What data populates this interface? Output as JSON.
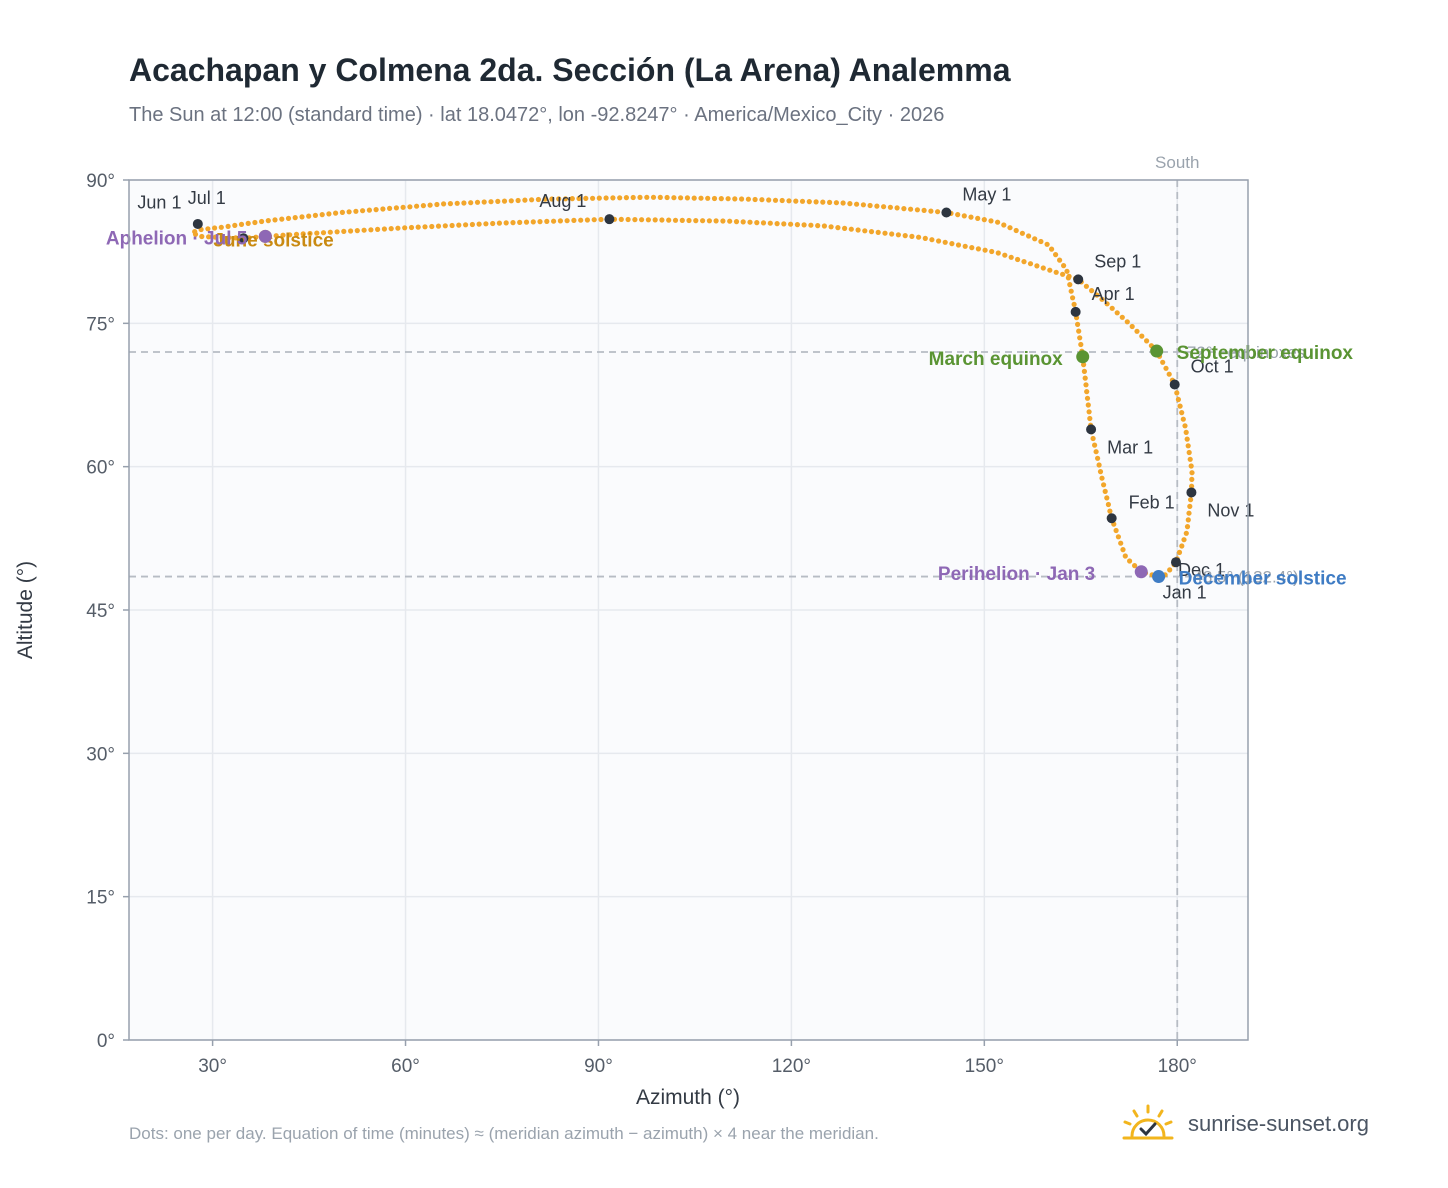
{
  "title": "Acachapan y Colmena 2da. Sección (La Arena) Analemma",
  "subtitle": "The Sun at 12:00 (standard time) · lat 18.0472°, lon -92.8247° · America/Mexico_City · 2026",
  "footnote": "Dots: one per day. Equation of time (minutes) ≈ (meridian azimuth − azimuth) × 4 near the meridian.",
  "brand": {
    "text": "sunrise-sunset.org",
    "icon": "sun-check-logo-icon"
  },
  "colors": {
    "path": "#f2a62b",
    "month_marker": "#2d3540",
    "solstice_june": "#c98a12",
    "solstice_december": "#3f7cc4",
    "equinox": "#5a9433",
    "apsis": "#8e68b5",
    "reference_line": "#b7bcc4",
    "grid": "#e6e9ee",
    "plot_bg": "#fafbfd",
    "axis_frame": "#97a0ad"
  },
  "chart_data": {
    "type": "scatter",
    "xlabel": "Azimuth (°)",
    "ylabel": "Altitude (°)",
    "xlim": [
      17,
      191
    ],
    "ylim": [
      0,
      90
    ],
    "xticks": [
      30,
      60,
      90,
      120,
      150,
      180
    ],
    "xtick_labels": [
      "30°",
      "60°",
      "90°",
      "120°",
      "150°",
      "180°"
    ],
    "yticks": [
      0,
      15,
      30,
      45,
      60,
      75,
      90
    ],
    "ytick_labels": [
      "0°",
      "15°",
      "30°",
      "45°",
      "60°",
      "75°",
      "90°"
    ],
    "grid": true,
    "meridian": {
      "azimuth": 180,
      "label": "South"
    },
    "reference_lines": [
      {
        "altitude": 72.0,
        "label": "72° · equinoxes"
      },
      {
        "altitude": 48.5,
        "label": "48.5° (132.4°)"
      }
    ],
    "month_markers": [
      {
        "label": "Jan 1",
        "az": 177.1,
        "alt": 48.5
      },
      {
        "label": "Feb 1",
        "az": 169.8,
        "alt": 54.6
      },
      {
        "label": "Mar 1",
        "az": 166.6,
        "alt": 63.9
      },
      {
        "label": "Apr 1",
        "az": 164.2,
        "alt": 76.2
      },
      {
        "label": "May 1",
        "az": 144.1,
        "alt": 86.6
      },
      {
        "label": "Jun 1",
        "az": 34.8,
        "alt": 83.9
      },
      {
        "label": "Jul 1",
        "az": 27.7,
        "alt": 85.4
      },
      {
        "label": "Aug 1",
        "az": 91.7,
        "alt": 85.9
      },
      {
        "label": "Sep 1",
        "az": 164.6,
        "alt": 79.6
      },
      {
        "label": "Oct 1",
        "az": 179.6,
        "alt": 68.6
      },
      {
        "label": "Nov 1",
        "az": 182.2,
        "alt": 57.3
      },
      {
        "label": "Dec 1",
        "az": 179.8,
        "alt": 50.0
      }
    ],
    "events": [
      {
        "label": "June solstice",
        "az": 38.2,
        "alt": 84.1,
        "kind": "solstice_june"
      },
      {
        "label": "December solstice",
        "az": 177.1,
        "alt": 48.5,
        "kind": "solstice_december"
      },
      {
        "label": "March equinox",
        "az": 165.3,
        "alt": 71.5,
        "kind": "equinox"
      },
      {
        "label": "September equinox",
        "az": 176.8,
        "alt": 72.1,
        "kind": "equinox"
      },
      {
        "label": "Aphelion · Jul 5",
        "az": 38.2,
        "alt": 84.1,
        "kind": "apsis"
      },
      {
        "label": "Perihelion · Jan 3",
        "az": 174.4,
        "alt": 49.0,
        "kind": "apsis"
      }
    ],
    "series": [
      {
        "points": [
          [
            177.1,
            48.5
          ],
          [
            174.4,
            49.0
          ],
          [
            172.0,
            50.5
          ],
          [
            169.8,
            54.6
          ],
          [
            168.3,
            58.8
          ],
          [
            166.6,
            63.9
          ],
          [
            165.3,
            71.5
          ],
          [
            164.2,
            76.2
          ],
          [
            162.8,
            80.6
          ],
          [
            160.0,
            83.2
          ],
          [
            152.0,
            85.6
          ],
          [
            144.1,
            86.6
          ],
          [
            128.0,
            87.6
          ],
          [
            113.0,
            88.0
          ],
          [
            98.0,
            88.2
          ],
          [
            82.0,
            88.0
          ],
          [
            66.0,
            87.5
          ],
          [
            50.0,
            86.6
          ],
          [
            38.0,
            85.7
          ],
          [
            32.0,
            85.1
          ],
          [
            28.0,
            84.8
          ],
          [
            26.8,
            84.5
          ],
          [
            28.0,
            84.1
          ],
          [
            34.8,
            83.9
          ],
          [
            38.2,
            84.1
          ],
          [
            45.0,
            84.4
          ],
          [
            60.0,
            85.0
          ],
          [
            75.0,
            85.5
          ],
          [
            91.7,
            85.9
          ],
          [
            110.0,
            85.7
          ],
          [
            125.0,
            85.2
          ],
          [
            140.0,
            84.0
          ],
          [
            152.0,
            82.4
          ],
          [
            160.0,
            80.6
          ],
          [
            164.6,
            79.6
          ],
          [
            168.5,
            77.4
          ],
          [
            172.5,
            75.0
          ],
          [
            176.8,
            72.1
          ],
          [
            179.6,
            68.6
          ],
          [
            181.3,
            64.0
          ],
          [
            182.3,
            59.5
          ],
          [
            182.2,
            57.3
          ],
          [
            181.5,
            53.2
          ],
          [
            179.8,
            50.0
          ],
          [
            178.2,
            48.7
          ],
          [
            177.1,
            48.5
          ]
        ]
      }
    ]
  }
}
